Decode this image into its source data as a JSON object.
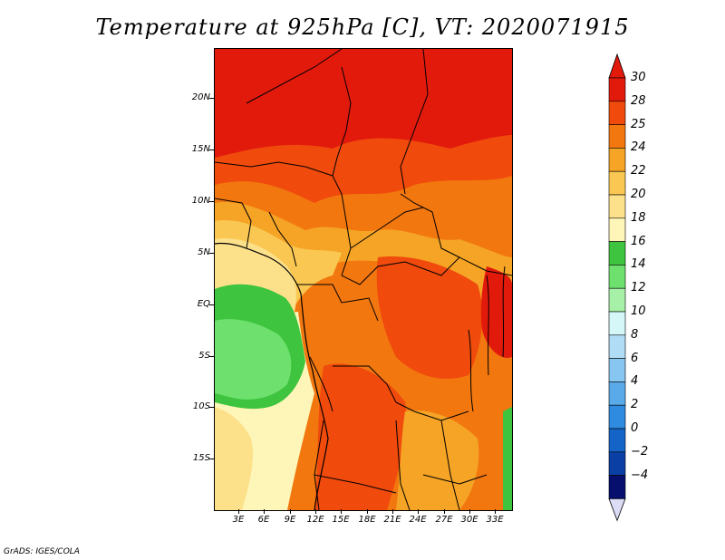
{
  "title": "Temperature at 925hPa [C], VT: 2020071915",
  "footer": "GrADS: IGES/COLA",
  "map": {
    "lat_labels": [
      "20N",
      "15N",
      "10N",
      "5N",
      "EQ",
      "5S",
      "10S",
      "15S"
    ],
    "lon_labels": [
      "3E",
      "6E",
      "9E",
      "12E",
      "15E",
      "18E",
      "21E",
      "24E",
      "27E",
      "30E",
      "33E"
    ]
  },
  "colorbar": {
    "levels": [
      "30",
      "28",
      "25",
      "24",
      "22",
      "20",
      "18",
      "16",
      "14",
      "12",
      "10",
      "8",
      "6",
      "4",
      "2",
      "0",
      "−2",
      "−4"
    ],
    "colors": [
      "#e21a0c",
      "#f04a0c",
      "#f2770f",
      "#f5a425",
      "#fac752",
      "#fde08a",
      "#fef6b8",
      "#3ec43e",
      "#6ee06e",
      "#a7f0a7",
      "#d5f7f8",
      "#b1dcf6",
      "#87c6f1",
      "#5aa9e8",
      "#2f8be0",
      "#1464c8",
      "#0a3fa6",
      "#060e6e"
    ],
    "top_arrow_color": "#e21a0c",
    "bottom_arrow_color": "#dcdcf6"
  }
}
